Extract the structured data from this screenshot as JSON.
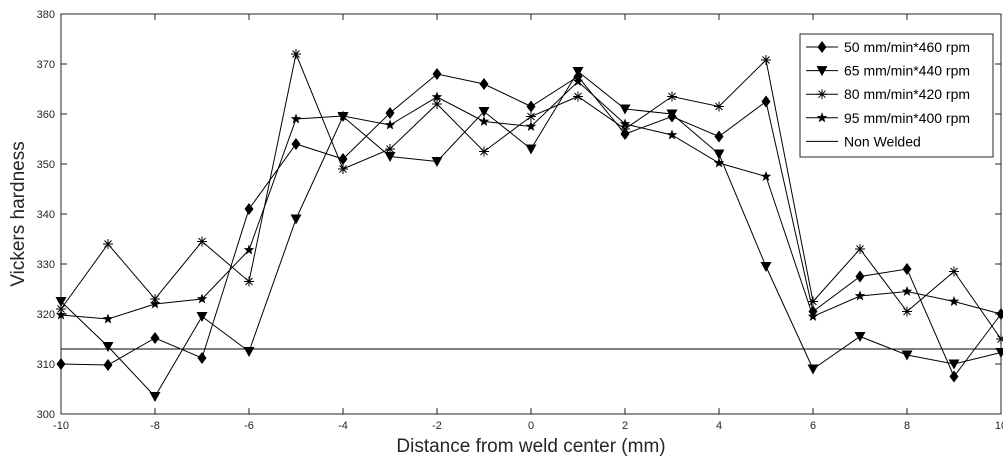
{
  "chart_data": {
    "type": "line",
    "xlabel": "Distance from weld center (mm)",
    "ylabel": "Vickers hardness",
    "xlim": [
      -10,
      10
    ],
    "ylim": [
      300,
      380
    ],
    "xticks": [
      -10,
      -8,
      -6,
      -4,
      -2,
      0,
      2,
      4,
      6,
      8,
      10
    ],
    "yticks": [
      300,
      310,
      320,
      330,
      340,
      350,
      360,
      370,
      380
    ],
    "x": [
      -10,
      -9,
      -8,
      -7,
      -6,
      -5,
      -4,
      -3,
      -2,
      -1,
      0,
      1,
      2,
      3,
      4,
      5,
      6,
      7,
      8,
      9,
      10
    ],
    "legend_position": "top-right",
    "grid": false,
    "series": [
      {
        "name": "50 mm/min*460 rpm",
        "marker": "diamond",
        "values": [
          310.0,
          309.8,
          315.2,
          311.2,
          341.0,
          354.0,
          351.0,
          360.2,
          368.0,
          366.0,
          361.5,
          367.5,
          356.0,
          359.5,
          355.5,
          362.5,
          320.5,
          327.5,
          329.0,
          307.5,
          320.0
        ]
      },
      {
        "name": "65 mm/min*440 rpm",
        "marker": "triangle-down",
        "values": [
          322.5,
          313.5,
          303.5,
          319.5,
          312.5,
          339.0,
          359.5,
          351.5,
          350.5,
          360.5,
          353.0,
          368.5,
          361.0,
          360.0,
          352.0,
          329.5,
          309.0,
          315.5,
          311.8,
          310.0,
          312.3
        ]
      },
      {
        "name": "80 mm/min*420 rpm",
        "marker": "asterisk",
        "values": [
          321.0,
          334.0,
          323.0,
          334.5,
          326.5,
          372.0,
          349.0,
          353.0,
          362.0,
          352.5,
          359.5,
          363.5,
          357.0,
          363.5,
          361.5,
          370.8,
          322.5,
          333.0,
          320.5,
          328.5,
          315.0
        ]
      },
      {
        "name": "95 mm/min*400 rpm",
        "marker": "star",
        "values": [
          319.8,
          319.0,
          322.0,
          323.0,
          332.8,
          359.0,
          359.6,
          357.8,
          363.4,
          358.5,
          357.5,
          366.5,
          358.0,
          355.8,
          350.2,
          347.5,
          319.5,
          323.6,
          324.5,
          322.5,
          320.0
        ]
      },
      {
        "name": "Non Welded",
        "marker": "none",
        "constant": 313
      }
    ]
  }
}
